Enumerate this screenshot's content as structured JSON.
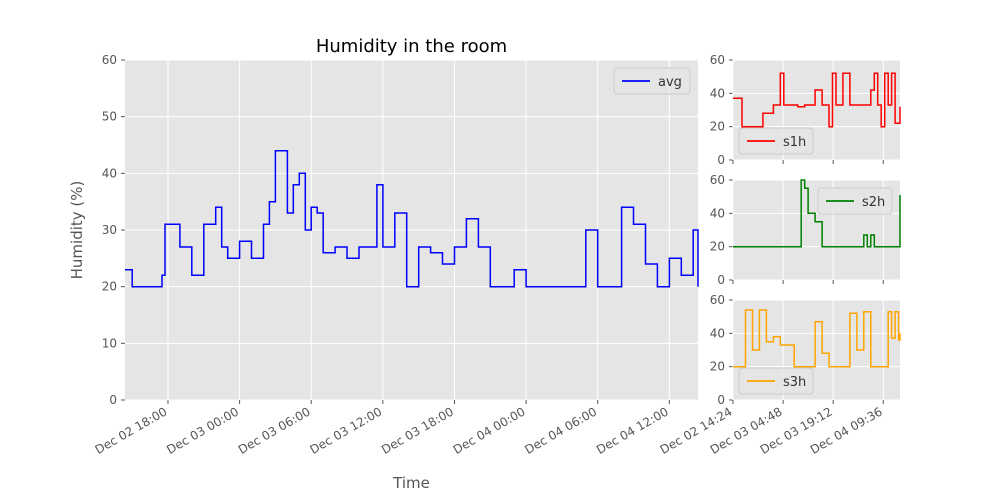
{
  "chart_data": [
    {
      "type": "line",
      "title": "Humidity in the room",
      "xlabel": "Time",
      "ylabel": "Humidity (%)",
      "ylim": [
        0,
        60
      ],
      "yticks": [
        0,
        10,
        20,
        30,
        40,
        50,
        60
      ],
      "xlim": [
        "2024-12-02 14:24",
        "2024-12-04 14:24"
      ],
      "xticks": [
        {
          "value": "2024-12-02 18:00",
          "label": "Dec 02 18:00"
        },
        {
          "value": "2024-12-03 00:00",
          "label": "Dec 03 00:00"
        },
        {
          "value": "2024-12-03 06:00",
          "label": "Dec 03 06:00"
        },
        {
          "value": "2024-12-03 12:00",
          "label": "Dec 03 12:00"
        },
        {
          "value": "2024-12-03 18:00",
          "label": "Dec 03 18:00"
        },
        {
          "value": "2024-12-04 00:00",
          "label": "Dec 04 00:00"
        },
        {
          "value": "2024-12-04 06:00",
          "label": "Dec 04 06:00"
        },
        {
          "value": "2024-12-04 12:00",
          "label": "Dec 04 12:00"
        }
      ],
      "grid": true,
      "legend_position": "top-right",
      "series": [
        {
          "name": "avg",
          "color": "#0000ff",
          "x": [
            "2024-12-02 14:24",
            "2024-12-02 15:00",
            "2024-12-02 16:00",
            "2024-12-02 17:30",
            "2024-12-02 17:45",
            "2024-12-02 18:30",
            "2024-12-02 19:00",
            "2024-12-02 20:00",
            "2024-12-02 21:00",
            "2024-12-02 22:00",
            "2024-12-02 22:30",
            "2024-12-02 23:00",
            "2024-12-03 00:00",
            "2024-12-03 01:00",
            "2024-12-03 02:00",
            "2024-12-03 02:30",
            "2024-12-03 03:00",
            "2024-12-03 04:00",
            "2024-12-03 04:30",
            "2024-12-03 05:00",
            "2024-12-03 05:30",
            "2024-12-03 06:00",
            "2024-12-03 06:30",
            "2024-12-03 07:00",
            "2024-12-03 08:00",
            "2024-12-03 09:00",
            "2024-12-03 10:00",
            "2024-12-03 11:00",
            "2024-12-03 11:30",
            "2024-12-03 12:00",
            "2024-12-03 13:00",
            "2024-12-03 14:00",
            "2024-12-03 15:00",
            "2024-12-03 16:00",
            "2024-12-03 17:00",
            "2024-12-03 18:00",
            "2024-12-03 19:00",
            "2024-12-03 20:00",
            "2024-12-03 21:00",
            "2024-12-03 22:00",
            "2024-12-03 23:00",
            "2024-12-04 00:00",
            "2024-12-04 02:00",
            "2024-12-04 04:00",
            "2024-12-04 05:00",
            "2024-12-04 06:00",
            "2024-12-04 07:00",
            "2024-12-04 08:00",
            "2024-12-04 09:00",
            "2024-12-04 10:00",
            "2024-12-04 11:00",
            "2024-12-04 12:00",
            "2024-12-04 13:00",
            "2024-12-04 14:00",
            "2024-12-04 14:24"
          ],
          "y": [
            23,
            20,
            20,
            22,
            31,
            31,
            27,
            22,
            31,
            34,
            27,
            25,
            28,
            25,
            31,
            35,
            44,
            33,
            38,
            40,
            30,
            34,
            33,
            26,
            27,
            25,
            27,
            27,
            38,
            27,
            33,
            20,
            27,
            26,
            24,
            27,
            32,
            27,
            20,
            20,
            23,
            20,
            20,
            20,
            30,
            20,
            20,
            34,
            31,
            24,
            20,
            25,
            22,
            30,
            20
          ]
        }
      ]
    },
    {
      "type": "line",
      "xlim": [
        "2024-12-02 14:24",
        "2024-12-04 14:24"
      ],
      "ylim": [
        0,
        60
      ],
      "yticks": [
        0,
        20,
        40,
        60
      ],
      "grid": true,
      "legend_position": "lower-left",
      "series": [
        {
          "name": "s1h",
          "color": "#ff0000",
          "x": [
            "2024-12-02 14:24",
            "2024-12-02 17:00",
            "2024-12-02 20:00",
            "2024-12-02 23:00",
            "2024-12-03 02:00",
            "2024-12-03 04:00",
            "2024-12-03 05:00",
            "2024-12-03 07:00",
            "2024-12-03 09:00",
            "2024-12-03 11:00",
            "2024-12-03 12:00",
            "2024-12-03 14:00",
            "2024-12-03 16:00",
            "2024-12-03 18:00",
            "2024-12-03 19:00",
            "2024-12-03 20:00",
            "2024-12-03 22:00",
            "2024-12-04 00:00",
            "2024-12-04 03:00",
            "2024-12-04 06:00",
            "2024-12-04 07:00",
            "2024-12-04 08:00",
            "2024-12-04 09:00",
            "2024-12-04 10:00",
            "2024-12-04 11:00",
            "2024-12-04 12:00",
            "2024-12-04 13:00",
            "2024-12-04 14:24"
          ],
          "y": [
            37,
            20,
            20,
            28,
            33,
            52,
            33,
            33,
            32,
            33,
            33,
            42,
            33,
            20,
            52,
            33,
            52,
            33,
            33,
            42,
            52,
            33,
            20,
            52,
            33,
            52,
            22,
            32
          ]
        }
      ]
    },
    {
      "type": "line",
      "xlim": [
        "2024-12-02 14:24",
        "2024-12-04 14:24"
      ],
      "ylim": [
        0,
        60
      ],
      "yticks": [
        0,
        20,
        40,
        60
      ],
      "grid": true,
      "legend_position": "top-right",
      "series": [
        {
          "name": "s2h",
          "color": "#008000",
          "x": [
            "2024-12-02 14:24",
            "2024-12-03 00:00",
            "2024-12-03 04:00",
            "2024-12-03 08:00",
            "2024-12-03 09:00",
            "2024-12-03 10:00",
            "2024-12-03 11:00",
            "2024-12-03 12:00",
            "2024-12-03 14:00",
            "2024-12-03 16:00",
            "2024-12-03 20:00",
            "2024-12-03 22:00",
            "2024-12-04 00:00",
            "2024-12-04 02:00",
            "2024-12-04 04:00",
            "2024-12-04 05:00",
            "2024-12-04 06:00",
            "2024-12-04 07:00",
            "2024-12-04 08:00",
            "2024-12-04 10:00",
            "2024-12-04 12:00",
            "2024-12-04 14:00",
            "2024-12-04 14:24"
          ],
          "y": [
            20,
            20,
            20,
            20,
            20,
            60,
            55,
            40,
            35,
            20,
            20,
            20,
            20,
            20,
            27,
            20,
            27,
            20,
            20,
            20,
            20,
            20,
            51
          ]
        }
      ]
    },
    {
      "type": "line",
      "xlim": [
        "2024-12-02 14:24",
        "2024-12-04 14:24"
      ],
      "ylim": [
        0,
        60
      ],
      "yticks": [
        0,
        20,
        40,
        60
      ],
      "xticks": [
        {
          "value": "2024-12-02 14:24",
          "label": "Dec 02 14:24"
        },
        {
          "value": "2024-12-03 04:48",
          "label": "Dec 03 04:48"
        },
        {
          "value": "2024-12-03 19:12",
          "label": "Dec 03 19:12"
        },
        {
          "value": "2024-12-04 09:36",
          "label": "Dec 04 09:36"
        }
      ],
      "grid": true,
      "legend_position": "lower-left",
      "series": [
        {
          "name": "s3h",
          "color": "#ffa500",
          "x": [
            "2024-12-02 14:24",
            "2024-12-02 16:00",
            "2024-12-02 18:00",
            "2024-12-02 20:00",
            "2024-12-02 22:00",
            "2024-12-03 00:00",
            "2024-12-03 02:00",
            "2024-12-03 04:00",
            "2024-12-03 06:00",
            "2024-12-03 08:00",
            "2024-12-03 10:00",
            "2024-12-03 12:00",
            "2024-12-03 14:00",
            "2024-12-03 16:00",
            "2024-12-03 18:00",
            "2024-12-03 20:00",
            "2024-12-03 22:00",
            "2024-12-04 00:00",
            "2024-12-04 02:00",
            "2024-12-04 04:00",
            "2024-12-04 06:00",
            "2024-12-04 08:00",
            "2024-12-04 10:00",
            "2024-12-04 11:00",
            "2024-12-04 12:00",
            "2024-12-04 13:00",
            "2024-12-04 14:00",
            "2024-12-04 14:24"
          ],
          "y": [
            20,
            20,
            54,
            30,
            54,
            35,
            38,
            33,
            33,
            20,
            20,
            20,
            47,
            28,
            20,
            20,
            20,
            52,
            30,
            53,
            20,
            20,
            20,
            53,
            37,
            53,
            36,
            40
          ]
        }
      ]
    }
  ]
}
